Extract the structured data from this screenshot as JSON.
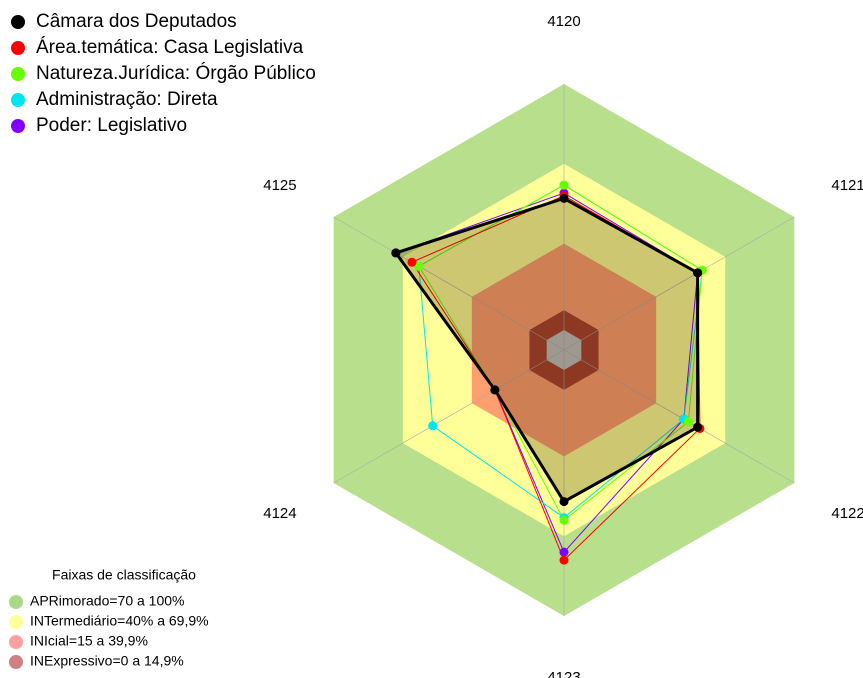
{
  "chart_data": {
    "type": "radar",
    "categories": [
      "4120",
      "4121",
      "4122",
      "4123",
      "4124",
      "4125"
    ],
    "ylim": [
      0,
      100
    ],
    "series": [
      {
        "name": "Câmara dos Deputados",
        "color": "#000000",
        "values": [
          57,
          58,
          58,
          57,
          30,
          73
        ]
      },
      {
        "name": "Área.temática: Casa Legislativa",
        "color": "#ff0000",
        "values": [
          58,
          58,
          59,
          79,
          30,
          66
        ]
      },
      {
        "name": "Natureza.Jurídica: Órgão Público",
        "color": "#66ff00",
        "values": [
          62,
          60,
          54,
          64,
          30,
          63
        ]
      },
      {
        "name": "Administração: Direta",
        "color": "#00e5ee",
        "values": [
          62,
          60,
          52,
          63,
          57,
          63
        ]
      },
      {
        "name": "Poder: Legislativo",
        "color": "#7f00ff",
        "values": [
          59,
          58,
          52,
          76,
          30,
          73
        ]
      }
    ],
    "bands_title": "Faixas de classificação",
    "bands": [
      {
        "label": "APRimorado=70 a 100%",
        "max": 100,
        "color": "#b8e08c",
        "legend_color": "#a8d888"
      },
      {
        "label": "INTermediário=40% a 69,9%",
        "max": 70,
        "color": "#ffff99",
        "legend_color": "#ffff99"
      },
      {
        "label": "INIcial=15 a 39,9%",
        "max": 40,
        "color": "#ff9f70",
        "legend_color": "#ff9f9f"
      },
      {
        "label": "INExpressivo=0 a 14,9%",
        "max": 15,
        "color": "#a8402e",
        "legend_color": "#d08080"
      }
    ]
  }
}
